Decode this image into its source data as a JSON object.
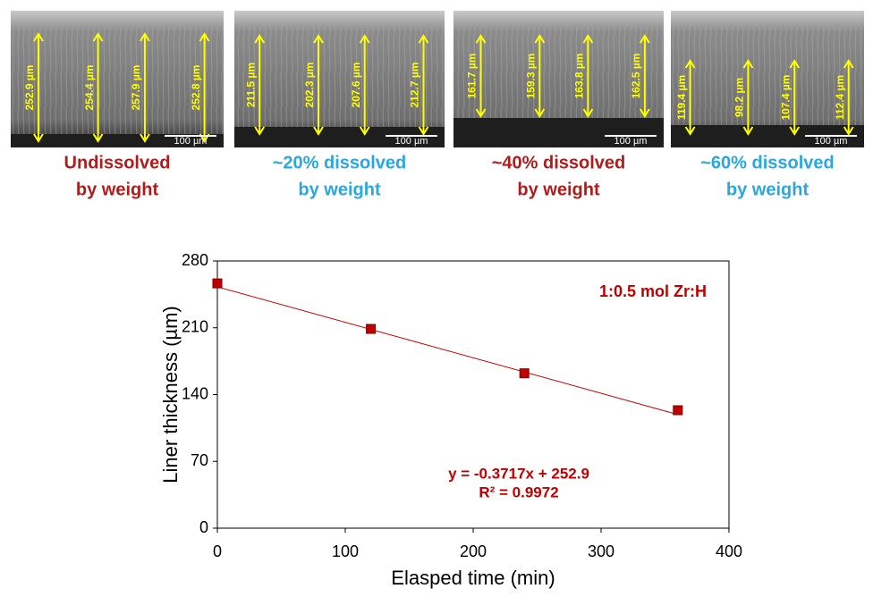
{
  "panels": [
    {
      "measurements": [
        "252.9 µm",
        "254.4 µm",
        "257.9 µm",
        "252.8 µm"
      ],
      "scale_bar": "100 µm",
      "caption": [
        "Undissolved",
        "by weight"
      ],
      "caption_color": "#b01c1c"
    },
    {
      "measurements": [
        "211.5 µm",
        "202.3 µm",
        "207.6 µm",
        "212.7 µm"
      ],
      "scale_bar": "100 µm",
      "caption": [
        "~20%  dissolved",
        "by weight"
      ],
      "caption_color": "#29a8e0"
    },
    {
      "measurements": [
        "161.7 µm",
        "159.3 µm",
        "163.8 µm",
        "162.5 µm"
      ],
      "scale_bar": "100 µm",
      "caption": [
        "~40%  dissolved",
        "by weight"
      ],
      "caption_color": "#b01c1c"
    },
    {
      "measurements": [
        "119.4 µm",
        "98.2 µm",
        "107.4 µm",
        "112.4 µm"
      ],
      "scale_bar": "100 µm",
      "caption": [
        "~60%  dissolved",
        "by weight"
      ],
      "caption_color": "#29a8e0"
    }
  ],
  "chart_data": {
    "type": "scatter",
    "x": [
      0,
      120,
      240,
      360
    ],
    "values": [
      256.5,
      208.8,
      162.3,
      123.6
    ],
    "color": "#c00000",
    "trendline": {
      "slope": -0.3717,
      "intercept": 252.9,
      "color": "#c00000"
    },
    "equation": [
      "y = -0.3717x + 252.9",
      "R² = 0.9972"
    ],
    "annotation": "1:0.5 mol Zr:H",
    "x_label": "Elasped time (min)",
    "y_label": "Liner thickness (µm)",
    "xlim": [
      0,
      400
    ],
    "xticks": [
      0,
      100,
      200,
      300,
      400
    ],
    "ylim": [
      0,
      280
    ],
    "yticks": [
      0,
      70,
      140,
      210,
      280
    ]
  }
}
